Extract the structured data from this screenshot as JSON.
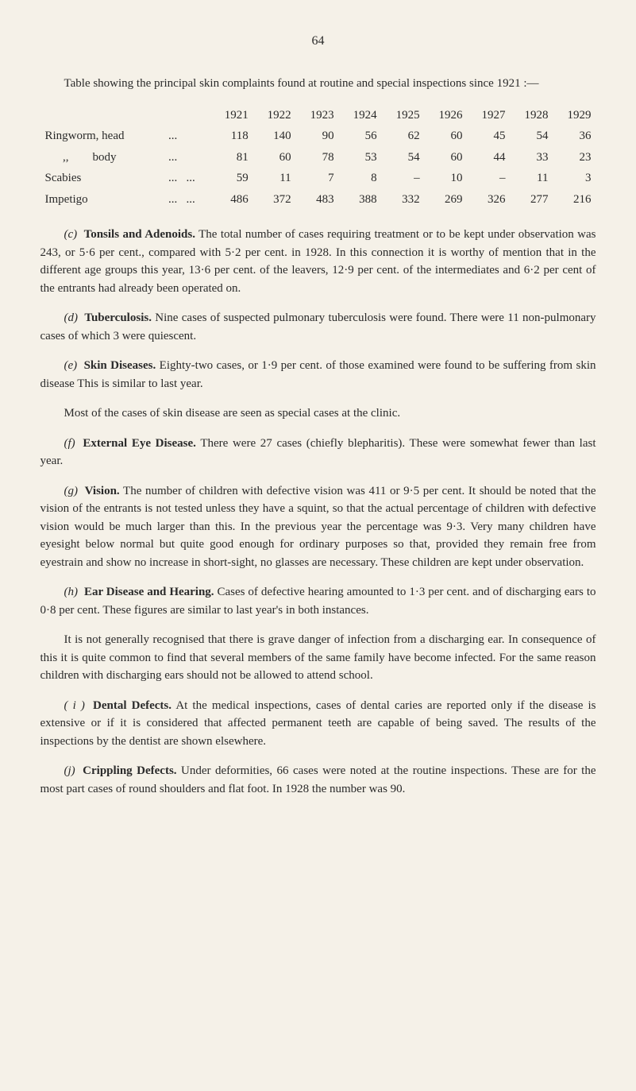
{
  "page_number": "64",
  "intro": "Table showing the principal skin complaints found at routine and special inspections since 1921 :—",
  "table": {
    "years": [
      "1921",
      "1922",
      "1923",
      "1924",
      "1925",
      "1926",
      "1927",
      "1928",
      "1929"
    ],
    "rows": [
      {
        "label": "Ringworm, head",
        "dots": "...",
        "values": [
          "118",
          "140",
          "90",
          "56",
          "62",
          "60",
          "45",
          "54",
          "36"
        ]
      },
      {
        "label": "      ,,        body",
        "dots": "...",
        "values": [
          "81",
          "60",
          "78",
          "53",
          "54",
          "60",
          "44",
          "33",
          "23"
        ]
      },
      {
        "label": "Scabies",
        "dots": "...   ...",
        "values": [
          "59",
          "11",
          "7",
          "8",
          "–",
          "10",
          "–",
          "11",
          "3"
        ]
      },
      {
        "label": "Impetigo",
        "dots": "...   ...",
        "values": [
          "486",
          "372",
          "483",
          "388",
          "332",
          "269",
          "326",
          "277",
          "216"
        ]
      }
    ]
  },
  "sections": {
    "c": {
      "label": "(c)",
      "title": "Tonsils and Adenoids.",
      "text": "The total number of cases requiring treatment or to be kept under observation was 243, or 5·6 per cent., compared with 5·2 per cent. in 1928. In this connection it is worthy of mention that in the different age groups this year, 13·6 per cent. of the leavers, 12·9 per cent. of the intermediates and 6·2 per cent of the entrants had already been operated on."
    },
    "d": {
      "label": "(d)",
      "title": "Tuberculosis.",
      "text": "Nine cases of suspected pulmonary tuberculosis were found. There were 11 non-pulmonary cases of which 3 were quiescent."
    },
    "e": {
      "label": "(e)",
      "title": "Skin Diseases.",
      "text": "Eighty-two cases, or 1·9 per cent. of those examined were found to be suffering from skin disease This is similar to last year.",
      "text2": "Most of the cases of skin disease are seen as special cases at the clinic."
    },
    "f": {
      "label": "(f)",
      "title": "External Eye Disease.",
      "text": "There were 27 cases (chiefly blepharitis). These were somewhat fewer than last year."
    },
    "g": {
      "label": "(g)",
      "title": "Vision.",
      "text": "The number of children with defective vision was 411 or 9·5 per cent. It should be noted that the vision of the entrants is not tested unless they have a squint, so that the actual percentage of children with defective vision would be much larger than this. In the previous year the percentage was 9·3. Very many children have eyesight below normal but quite good enough for ordinary purposes so that, provided they remain free from eyestrain and show no increase in short-sight, no glasses are necessary. These children are kept under observation."
    },
    "h": {
      "label": "(h)",
      "title": "Ear Disease and Hearing.",
      "text": "Cases of defective hearing amounted to 1·3 per cent. and of discharging ears to 0·8 per cent. These figures are similar to last year's in both instances.",
      "text2": "It is not generally recognised that there is grave danger of infection from a discharging ear. In consequence of this it is quite common to find that several members of the same family have become infected. For the same reason children with discharging ears should not be allowed to attend school."
    },
    "i": {
      "label": "( i )",
      "title": "Dental Defects.",
      "text": "At the medical inspections, cases of dental caries are reported only if the disease is extensive or if it is considered that affected permanent teeth are capable of being saved. The results of the inspections by the dentist are shown elsewhere."
    },
    "j": {
      "label": "(j)",
      "title": "Crippling Defects.",
      "text": "Under deformities, 66 cases were noted at the routine inspections. These are for the most part cases of round shoulders and flat foot. In 1928 the number was 90."
    }
  }
}
